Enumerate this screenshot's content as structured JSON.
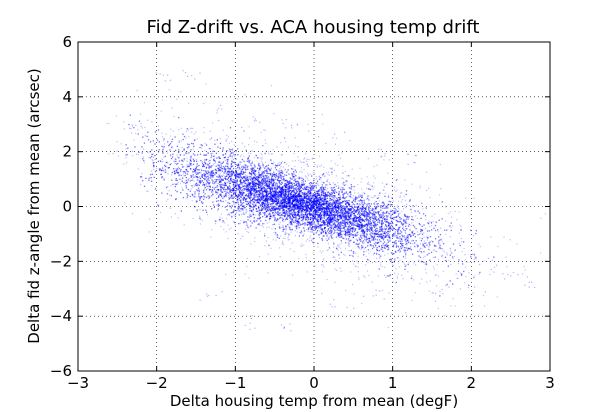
{
  "chart_data": {
    "type": "scatter",
    "title": "Fid Z-drift vs. ACA housing temp drift",
    "xlabel": "Delta housing temp from mean (degF)",
    "ylabel": "Delta fid z-angle from mean (arcsec)",
    "xlim": [
      -3,
      3
    ],
    "ylim": [
      -6,
      6
    ],
    "xticks": [
      -3,
      -2,
      -1,
      0,
      1,
      2,
      3
    ],
    "yticks": [
      -6,
      -4,
      -2,
      0,
      2,
      4,
      6
    ],
    "xtick_labels": [
      "−3",
      "−2",
      "−1",
      "0",
      "1",
      "2",
      "3"
    ],
    "ytick_labels": [
      "−6",
      "−4",
      "−2",
      "0",
      "2",
      "4",
      "6"
    ],
    "grid": true,
    "grid_style": "dotted",
    "marker_color": "#0000ff",
    "series": [
      {
        "description_points": [
          [
            -2.4,
            2.0
          ],
          [
            -2.2,
            1.9
          ],
          [
            -2.0,
            1.8
          ],
          [
            -1.8,
            1.6
          ],
          [
            -1.6,
            1.4
          ],
          [
            -1.4,
            1.2
          ],
          [
            -1.2,
            1.0
          ],
          [
            -1.0,
            0.8
          ],
          [
            -0.8,
            0.6
          ],
          [
            -0.6,
            0.4
          ],
          [
            -0.4,
            0.2
          ],
          [
            -0.2,
            0.0
          ],
          [
            0.0,
            -0.1
          ],
          [
            0.2,
            -0.3
          ],
          [
            0.4,
            -0.5
          ],
          [
            0.6,
            -0.7
          ],
          [
            0.8,
            -0.9
          ],
          [
            1.0,
            -1.0
          ],
          [
            1.2,
            -1.2
          ],
          [
            1.4,
            -1.3
          ],
          [
            1.6,
            -1.5
          ],
          [
            1.8,
            -1.7
          ],
          [
            2.0,
            -1.9
          ],
          [
            2.2,
            -2.2
          ],
          [
            2.5,
            -2.5
          ],
          [
            2.8,
            -2.8
          ],
          [
            -2.3,
            2.9
          ],
          [
            -1.9,
            4.7
          ],
          [
            -1.6,
            4.8
          ],
          [
            -1.2,
            3.5
          ],
          [
            -0.8,
            3.2
          ],
          [
            -0.3,
            3.0
          ],
          [
            0.3,
            2.5
          ],
          [
            0.9,
            2.0
          ],
          [
            1.2,
            1.8
          ],
          [
            -1.3,
            -3.2
          ],
          [
            -0.8,
            -4.2
          ],
          [
            -0.4,
            -4.4
          ],
          [
            0.3,
            -3.6
          ],
          [
            0.8,
            -3.2
          ],
          [
            1.6,
            -3.0
          ],
          [
            2.0,
            -3.0
          ]
        ],
        "core_trend": {
          "slope": -0.85,
          "intercept": 0.0,
          "x_range": [
            -2.4,
            2.8
          ]
        }
      }
    ]
  }
}
